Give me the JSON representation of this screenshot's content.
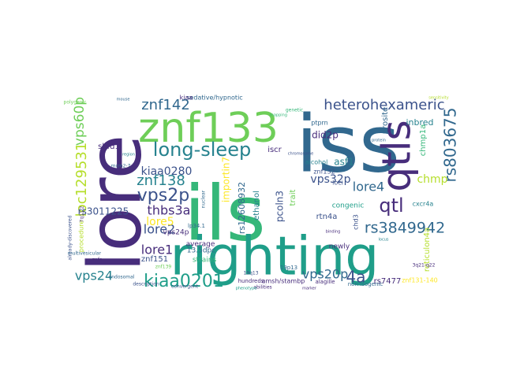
{
  "palette": {
    "background": "#ffffff",
    "dark_purple": "#472d7b",
    "indigo": "#3b528b",
    "blue": "#31688e",
    "teal": "#26828e",
    "green_teal": "#1f9e89",
    "green": "#35b779",
    "lime": "#6ece58",
    "yellow_green": "#b5de2b",
    "yellow": "#fde725"
  },
  "words": [
    {
      "text": "lore",
      "color": "#472d7b"
    },
    {
      "text": "iss",
      "color": "#31688e"
    },
    {
      "text": "ils",
      "color": "#35b779"
    },
    {
      "text": "righting",
      "color": "#1f9e89"
    },
    {
      "text": "znf133",
      "color": "#6ece58"
    },
    {
      "text": "qtls",
      "color": "#472d7b"
    },
    {
      "text": "long-sleep",
      "color": "#26828e"
    },
    {
      "text": "rs803675",
      "color": "#31688e"
    },
    {
      "text": "heterohexameric",
      "color": "#3b528b"
    },
    {
      "text": "loc129531",
      "color": "#b5de2b"
    },
    {
      "text": "vps60p",
      "color": "#6ece58"
    },
    {
      "text": "znf142",
      "color": "#31688e"
    },
    {
      "text": "kiaa0201",
      "color": "#1f9e89"
    },
    {
      "text": "vps2p",
      "color": "#3b528b"
    },
    {
      "text": "qtl",
      "color": "#472d7b"
    },
    {
      "text": "4a",
      "color": "#3b528b"
    },
    {
      "text": "rs3849942",
      "color": "#31688e"
    },
    {
      "text": "znf138",
      "color": "#26828e"
    },
    {
      "text": "kiaa0280",
      "color": "#3b528b"
    },
    {
      "text": "thbs3a",
      "color": "#472d7b"
    },
    {
      "text": "vps24",
      "color": "#26828e"
    },
    {
      "text": "lore2",
      "color": "#3b528b"
    },
    {
      "text": "lore1",
      "color": "#472d7b"
    },
    {
      "text": "lore5",
      "color": "#fde725"
    },
    {
      "text": "lore4",
      "color": "#31688e"
    },
    {
      "text": "vps20p",
      "color": "#31688e"
    },
    {
      "text": "vps32p",
      "color": "#3b528b"
    },
    {
      "text": "chmp",
      "color": "#b5de2b"
    },
    {
      "text": "rs3011225",
      "color": "#3b528b"
    },
    {
      "text": "importin7",
      "color": "#fde725"
    },
    {
      "text": "rs12608932",
      "color": "#31688e"
    },
    {
      "text": "pcoln3",
      "color": "#3b528b"
    },
    {
      "text": "did2p",
      "color": "#472d7b"
    },
    {
      "text": "asf1",
      "color": "#26828e"
    },
    {
      "text": "inbred",
      "color": "#26828e"
    },
    {
      "text": "chmp1a",
      "color": "#35b779"
    },
    {
      "text": "shfd1",
      "color": "#472d7b"
    },
    {
      "text": "iscr",
      "color": "#472d7b"
    },
    {
      "text": "znf151",
      "color": "#3b528b"
    },
    {
      "text": "rs7477",
      "color": "#472d7b"
    },
    {
      "text": "rtn4a",
      "color": "#3b528b"
    },
    {
      "text": "reticulon4a",
      "color": "#b5de2b"
    },
    {
      "text": "prosite",
      "color": "#31688e"
    },
    {
      "text": "trait",
      "color": "#6ece58"
    },
    {
      "text": "ethanol",
      "color": "#26828e"
    },
    {
      "text": "average",
      "color": "#472d7b"
    },
    {
      "text": "vps24p",
      "color": "#472d7b"
    },
    {
      "text": "13.5dpc",
      "color": "#31688e"
    },
    {
      "text": "strains",
      "color": "#35b779"
    },
    {
      "text": "congenic",
      "color": "#1f9e89"
    },
    {
      "text": "newly",
      "color": "#472d7b"
    },
    {
      "text": "loci",
      "color": "#3b528b"
    },
    {
      "text": "ptprn",
      "color": "#31688e"
    },
    {
      "text": "cxcr4a",
      "color": "#26828e"
    },
    {
      "text": "znf132",
      "color": "#3b528b"
    },
    {
      "text": "amsh/stambp",
      "color": "#472d7b"
    },
    {
      "text": "alcohol",
      "color": "#26828e"
    },
    {
      "text": "sedative/hypnotic",
      "color": "#31688e"
    },
    {
      "text": "kiaa",
      "color": "#472d7b"
    },
    {
      "text": "hundreds",
      "color": "#472d7b"
    },
    {
      "text": "19p13",
      "color": "#31688e"
    },
    {
      "text": "chd3",
      "color": "#3b528b"
    },
    {
      "text": "non-isogenic",
      "color": "#31688e"
    },
    {
      "text": "znf131-140",
      "color": "#fde725"
    },
    {
      "text": "alagille",
      "color": "#472d7b"
    },
    {
      "text": "lp34.1",
      "color": "#31688e"
    },
    {
      "text": "znfs",
      "color": "#472d7b"
    },
    {
      "text": "mcm2-7",
      "color": "#31688e"
    },
    {
      "text": "procedure",
      "color": "#b5de2b"
    },
    {
      "text": "already-discovered",
      "color": "#3b528b"
    },
    {
      "text": "7q11.2",
      "color": "#472d7b"
    },
    {
      "text": "multivesicular",
      "color": "#31688e"
    },
    {
      "text": "19q13",
      "color": "#3b528b"
    },
    {
      "text": "3q21-q22",
      "color": "#472d7b"
    },
    {
      "text": "znf139",
      "color": "#6ece58"
    },
    {
      "text": "nuclear",
      "color": "#31688e"
    },
    {
      "text": "description",
      "color": "#3b528b"
    },
    {
      "text": "polygenic",
      "color": "#6ece58"
    },
    {
      "text": "endosomal",
      "color": "#31688e"
    },
    {
      "text": "abilities",
      "color": "#472d7b"
    },
    {
      "text": "convergent",
      "color": "#3b528b"
    },
    {
      "text": "genetic",
      "color": "#35b779"
    },
    {
      "text": "mouse",
      "color": "#31688e"
    },
    {
      "text": "phenotype",
      "color": "#1f9e89"
    },
    {
      "text": "sensitivity",
      "color": "#b5de2b"
    },
    {
      "text": "marker",
      "color": "#472d7b"
    },
    {
      "text": "locus",
      "color": "#26828e"
    },
    {
      "text": "chromosome",
      "color": "#3b528b"
    },
    {
      "text": "mapping",
      "color": "#35b779"
    },
    {
      "text": "protein",
      "color": "#31688e"
    },
    {
      "text": "binding",
      "color": "#472d7b"
    },
    {
      "text": "region",
      "color": "#26828e"
    }
  ]
}
